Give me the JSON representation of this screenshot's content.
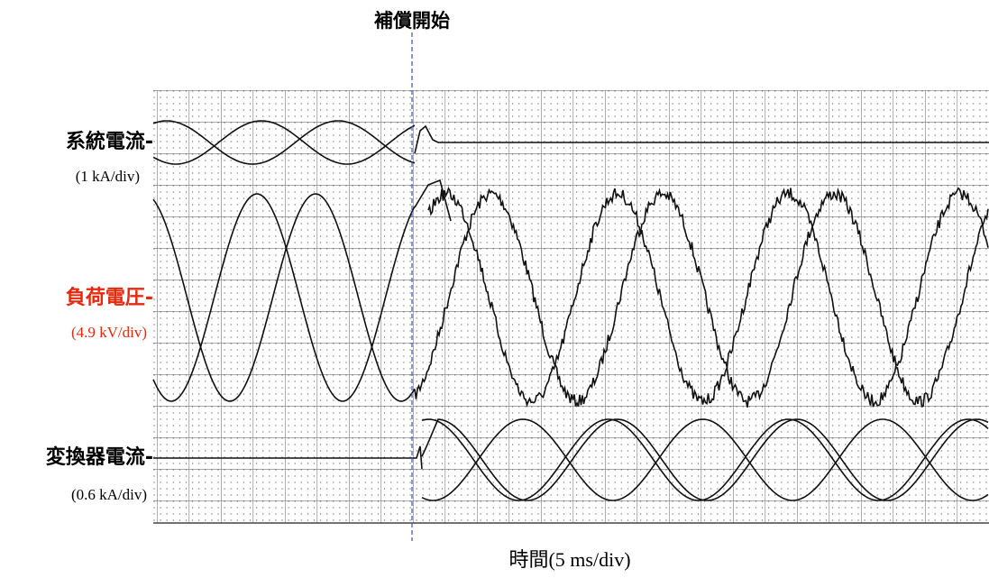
{
  "title": "補償開始",
  "traces": [
    {
      "label": "系統電流-",
      "scale": "(1 kA/div)",
      "color": "#000000"
    },
    {
      "label": "負荷電圧-",
      "scale": "(4.9 kV/div)",
      "color": "#e8280c"
    },
    {
      "label": "変換器電流-",
      "scale": "(0.6 kA/div)",
      "color": "#000000"
    }
  ],
  "x_axis_label": "時間(5 ms/div)"
}
